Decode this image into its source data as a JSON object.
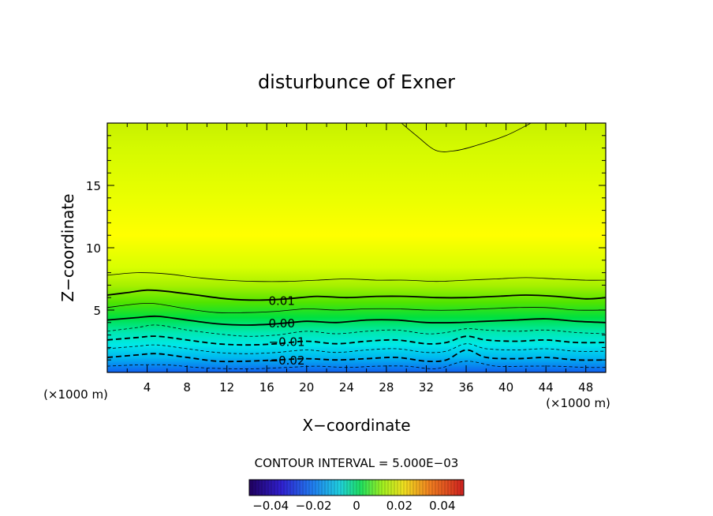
{
  "chart_data": {
    "type": "contour",
    "title": "disturbunce of Exner",
    "xlabel": "X−coordinate",
    "ylabel": "Z−coordinate",
    "x_unit_left": "(×1000 m)",
    "x_unit_right": "(×1000 m)",
    "xlim": [
      0,
      50
    ],
    "ylim": [
      0,
      20
    ],
    "x_ticks": [
      {
        "value": 4,
        "label": "4"
      },
      {
        "value": 8,
        "label": "8"
      },
      {
        "value": 12,
        "label": "12"
      },
      {
        "value": 16,
        "label": "16"
      },
      {
        "value": 20,
        "label": "20"
      },
      {
        "value": 24,
        "label": "24"
      },
      {
        "value": 28,
        "label": "28"
      },
      {
        "value": 32,
        "label": "32"
      },
      {
        "value": 36,
        "label": "36"
      },
      {
        "value": 40,
        "label": "40"
      },
      {
        "value": 44,
        "label": "44"
      },
      {
        "value": 48,
        "label": "48"
      }
    ],
    "y_ticks": [
      {
        "value": 5,
        "label": "5"
      },
      {
        "value": 10,
        "label": "10"
      },
      {
        "value": 15,
        "label": "15"
      }
    ],
    "contour_interval_text": "CONTOUR INTERVAL = 5.000E−03",
    "contour_labels": [
      {
        "level": 0.01,
        "text": "0.01",
        "x": 17.5,
        "z": 5.8
      },
      {
        "level": 0.0,
        "text": "0.00",
        "x": 17.5,
        "z": 4.0
      },
      {
        "level": -0.01,
        "text": "−0.01",
        "x": 18.0,
        "z": 2.5
      },
      {
        "level": -0.02,
        "text": "−0.02",
        "x": 18.0,
        "z": 1.0
      }
    ],
    "contours": [
      {
        "level": 0.02,
        "dashed": false,
        "thick": false,
        "points": [
          [
            29.5,
            20.0
          ],
          [
            31,
            19.0
          ],
          [
            33,
            17.8
          ],
          [
            35,
            17.8
          ],
          [
            37,
            18.2
          ],
          [
            40,
            19.0
          ],
          [
            42.5,
            20.0
          ]
        ]
      },
      {
        "level": 0.015,
        "dashed": false,
        "thick": false,
        "points": [
          [
            0,
            7.8
          ],
          [
            3,
            8.0
          ],
          [
            6,
            7.9
          ],
          [
            9,
            7.6
          ],
          [
            12,
            7.4
          ],
          [
            15,
            7.3
          ],
          [
            18,
            7.3
          ],
          [
            21,
            7.4
          ],
          [
            24,
            7.5
          ],
          [
            27,
            7.4
          ],
          [
            30,
            7.4
          ],
          [
            33,
            7.3
          ],
          [
            36,
            7.4
          ],
          [
            39,
            7.5
          ],
          [
            42,
            7.6
          ],
          [
            45,
            7.5
          ],
          [
            48,
            7.4
          ],
          [
            50,
            7.4
          ]
        ]
      },
      {
        "level": 0.01,
        "dashed": false,
        "thick": true,
        "points": [
          [
            0,
            6.2
          ],
          [
            2,
            6.4
          ],
          [
            4,
            6.6
          ],
          [
            6,
            6.5
          ],
          [
            9,
            6.2
          ],
          [
            12,
            5.9
          ],
          [
            15,
            5.8
          ],
          [
            18,
            5.9
          ],
          [
            21,
            6.1
          ],
          [
            24,
            6.0
          ],
          [
            27,
            6.1
          ],
          [
            30,
            6.1
          ],
          [
            33,
            6.0
          ],
          [
            36,
            6.0
          ],
          [
            39,
            6.1
          ],
          [
            42,
            6.2
          ],
          [
            45,
            6.1
          ],
          [
            48,
            5.9
          ],
          [
            50,
            6.0
          ]
        ]
      },
      {
        "level": 0.005,
        "dashed": false,
        "thick": false,
        "points": [
          [
            0,
            5.2
          ],
          [
            3,
            5.5
          ],
          [
            5,
            5.5
          ],
          [
            8,
            5.1
          ],
          [
            11,
            4.8
          ],
          [
            14,
            4.8
          ],
          [
            17,
            4.9
          ],
          [
            20,
            5.1
          ],
          [
            23,
            5.0
          ],
          [
            26,
            5.1
          ],
          [
            29,
            5.1
          ],
          [
            32,
            5.0
          ],
          [
            35,
            5.0
          ],
          [
            38,
            5.1
          ],
          [
            41,
            5.2
          ],
          [
            44,
            5.2
          ],
          [
            47,
            5.0
          ],
          [
            50,
            5.0
          ]
        ]
      },
      {
        "level": 0.0,
        "dashed": false,
        "thick": true,
        "points": [
          [
            0,
            4.2
          ],
          [
            3,
            4.4
          ],
          [
            5,
            4.5
          ],
          [
            8,
            4.2
          ],
          [
            11,
            3.9
          ],
          [
            14,
            3.8
          ],
          [
            17,
            3.9
          ],
          [
            20,
            4.1
          ],
          [
            23,
            4.0
          ],
          [
            26,
            4.2
          ],
          [
            29,
            4.2
          ],
          [
            32,
            4.0
          ],
          [
            35,
            4.0
          ],
          [
            38,
            4.1
          ],
          [
            41,
            4.2
          ],
          [
            44,
            4.3
          ],
          [
            47,
            4.1
          ],
          [
            50,
            4.0
          ]
        ]
      },
      {
        "level": -0.005,
        "dashed": true,
        "thick": false,
        "points": [
          [
            0,
            3.3
          ],
          [
            3,
            3.6
          ],
          [
            5,
            3.8
          ],
          [
            8,
            3.4
          ],
          [
            11,
            3.1
          ],
          [
            14,
            2.9
          ],
          [
            17,
            3.0
          ],
          [
            20,
            3.3
          ],
          [
            23,
            3.1
          ],
          [
            26,
            3.3
          ],
          [
            29,
            3.4
          ],
          [
            32,
            3.1
          ],
          [
            34,
            3.2
          ],
          [
            36,
            3.5
          ],
          [
            38,
            3.4
          ],
          [
            41,
            3.3
          ],
          [
            44,
            3.4
          ],
          [
            47,
            3.2
          ],
          [
            50,
            3.1
          ]
        ]
      },
      {
        "level": -0.01,
        "dashed": true,
        "thick": true,
        "points": [
          [
            0,
            2.6
          ],
          [
            3,
            2.8
          ],
          [
            5,
            2.9
          ],
          [
            8,
            2.6
          ],
          [
            11,
            2.3
          ],
          [
            14,
            2.2
          ],
          [
            17,
            2.3
          ],
          [
            20,
            2.5
          ],
          [
            23,
            2.3
          ],
          [
            26,
            2.5
          ],
          [
            29,
            2.6
          ],
          [
            32,
            2.3
          ],
          [
            34,
            2.4
          ],
          [
            36,
            2.9
          ],
          [
            38,
            2.6
          ],
          [
            41,
            2.5
          ],
          [
            44,
            2.6
          ],
          [
            47,
            2.4
          ],
          [
            50,
            2.4
          ]
        ]
      },
      {
        "level": -0.015,
        "dashed": true,
        "thick": false,
        "points": [
          [
            0,
            1.9
          ],
          [
            3,
            2.1
          ],
          [
            5,
            2.2
          ],
          [
            8,
            1.9
          ],
          [
            11,
            1.6
          ],
          [
            14,
            1.5
          ],
          [
            17,
            1.6
          ],
          [
            20,
            1.8
          ],
          [
            23,
            1.6
          ],
          [
            26,
            1.8
          ],
          [
            29,
            1.9
          ],
          [
            32,
            1.6
          ],
          [
            34,
            1.7
          ],
          [
            36,
            2.3
          ],
          [
            38,
            1.9
          ],
          [
            41,
            1.8
          ],
          [
            44,
            1.9
          ],
          [
            47,
            1.7
          ],
          [
            50,
            1.7
          ]
        ]
      },
      {
        "level": -0.02,
        "dashed": true,
        "thick": true,
        "points": [
          [
            0,
            1.2
          ],
          [
            3,
            1.4
          ],
          [
            5,
            1.5
          ],
          [
            8,
            1.2
          ],
          [
            11,
            0.9
          ],
          [
            14,
            0.9
          ],
          [
            17,
            1.0
          ],
          [
            20,
            1.1
          ],
          [
            23,
            1.0
          ],
          [
            26,
            1.1
          ],
          [
            29,
            1.2
          ],
          [
            32,
            0.9
          ],
          [
            34,
            1.0
          ],
          [
            36,
            1.8
          ],
          [
            38,
            1.2
          ],
          [
            41,
            1.1
          ],
          [
            44,
            1.2
          ],
          [
            47,
            1.0
          ],
          [
            50,
            1.0
          ]
        ]
      },
      {
        "level": -0.025,
        "dashed": true,
        "thick": false,
        "points": [
          [
            0,
            0.5
          ],
          [
            3,
            0.6
          ],
          [
            6,
            0.6
          ],
          [
            9,
            0.4
          ],
          [
            12,
            0.3
          ],
          [
            15,
            0.3
          ],
          [
            18,
            0.4
          ],
          [
            21,
            0.5
          ],
          [
            24,
            0.4
          ],
          [
            27,
            0.5
          ],
          [
            30,
            0.5
          ],
          [
            33,
            0.3
          ],
          [
            36,
            0.9
          ],
          [
            39,
            0.5
          ],
          [
            42,
            0.5
          ],
          [
            45,
            0.5
          ],
          [
            48,
            0.4
          ],
          [
            50,
            0.4
          ]
        ]
      }
    ],
    "colorbar": {
      "min": -0.05,
      "max": 0.05,
      "tick_labels": [
        {
          "value": -0.04,
          "label": "−0.04"
        },
        {
          "value": -0.02,
          "label": "−0.02"
        },
        {
          "value": 0,
          "label": "0"
        },
        {
          "value": 0.02,
          "label": "0.02"
        },
        {
          "value": 0.04,
          "label": "0.04"
        }
      ]
    }
  }
}
